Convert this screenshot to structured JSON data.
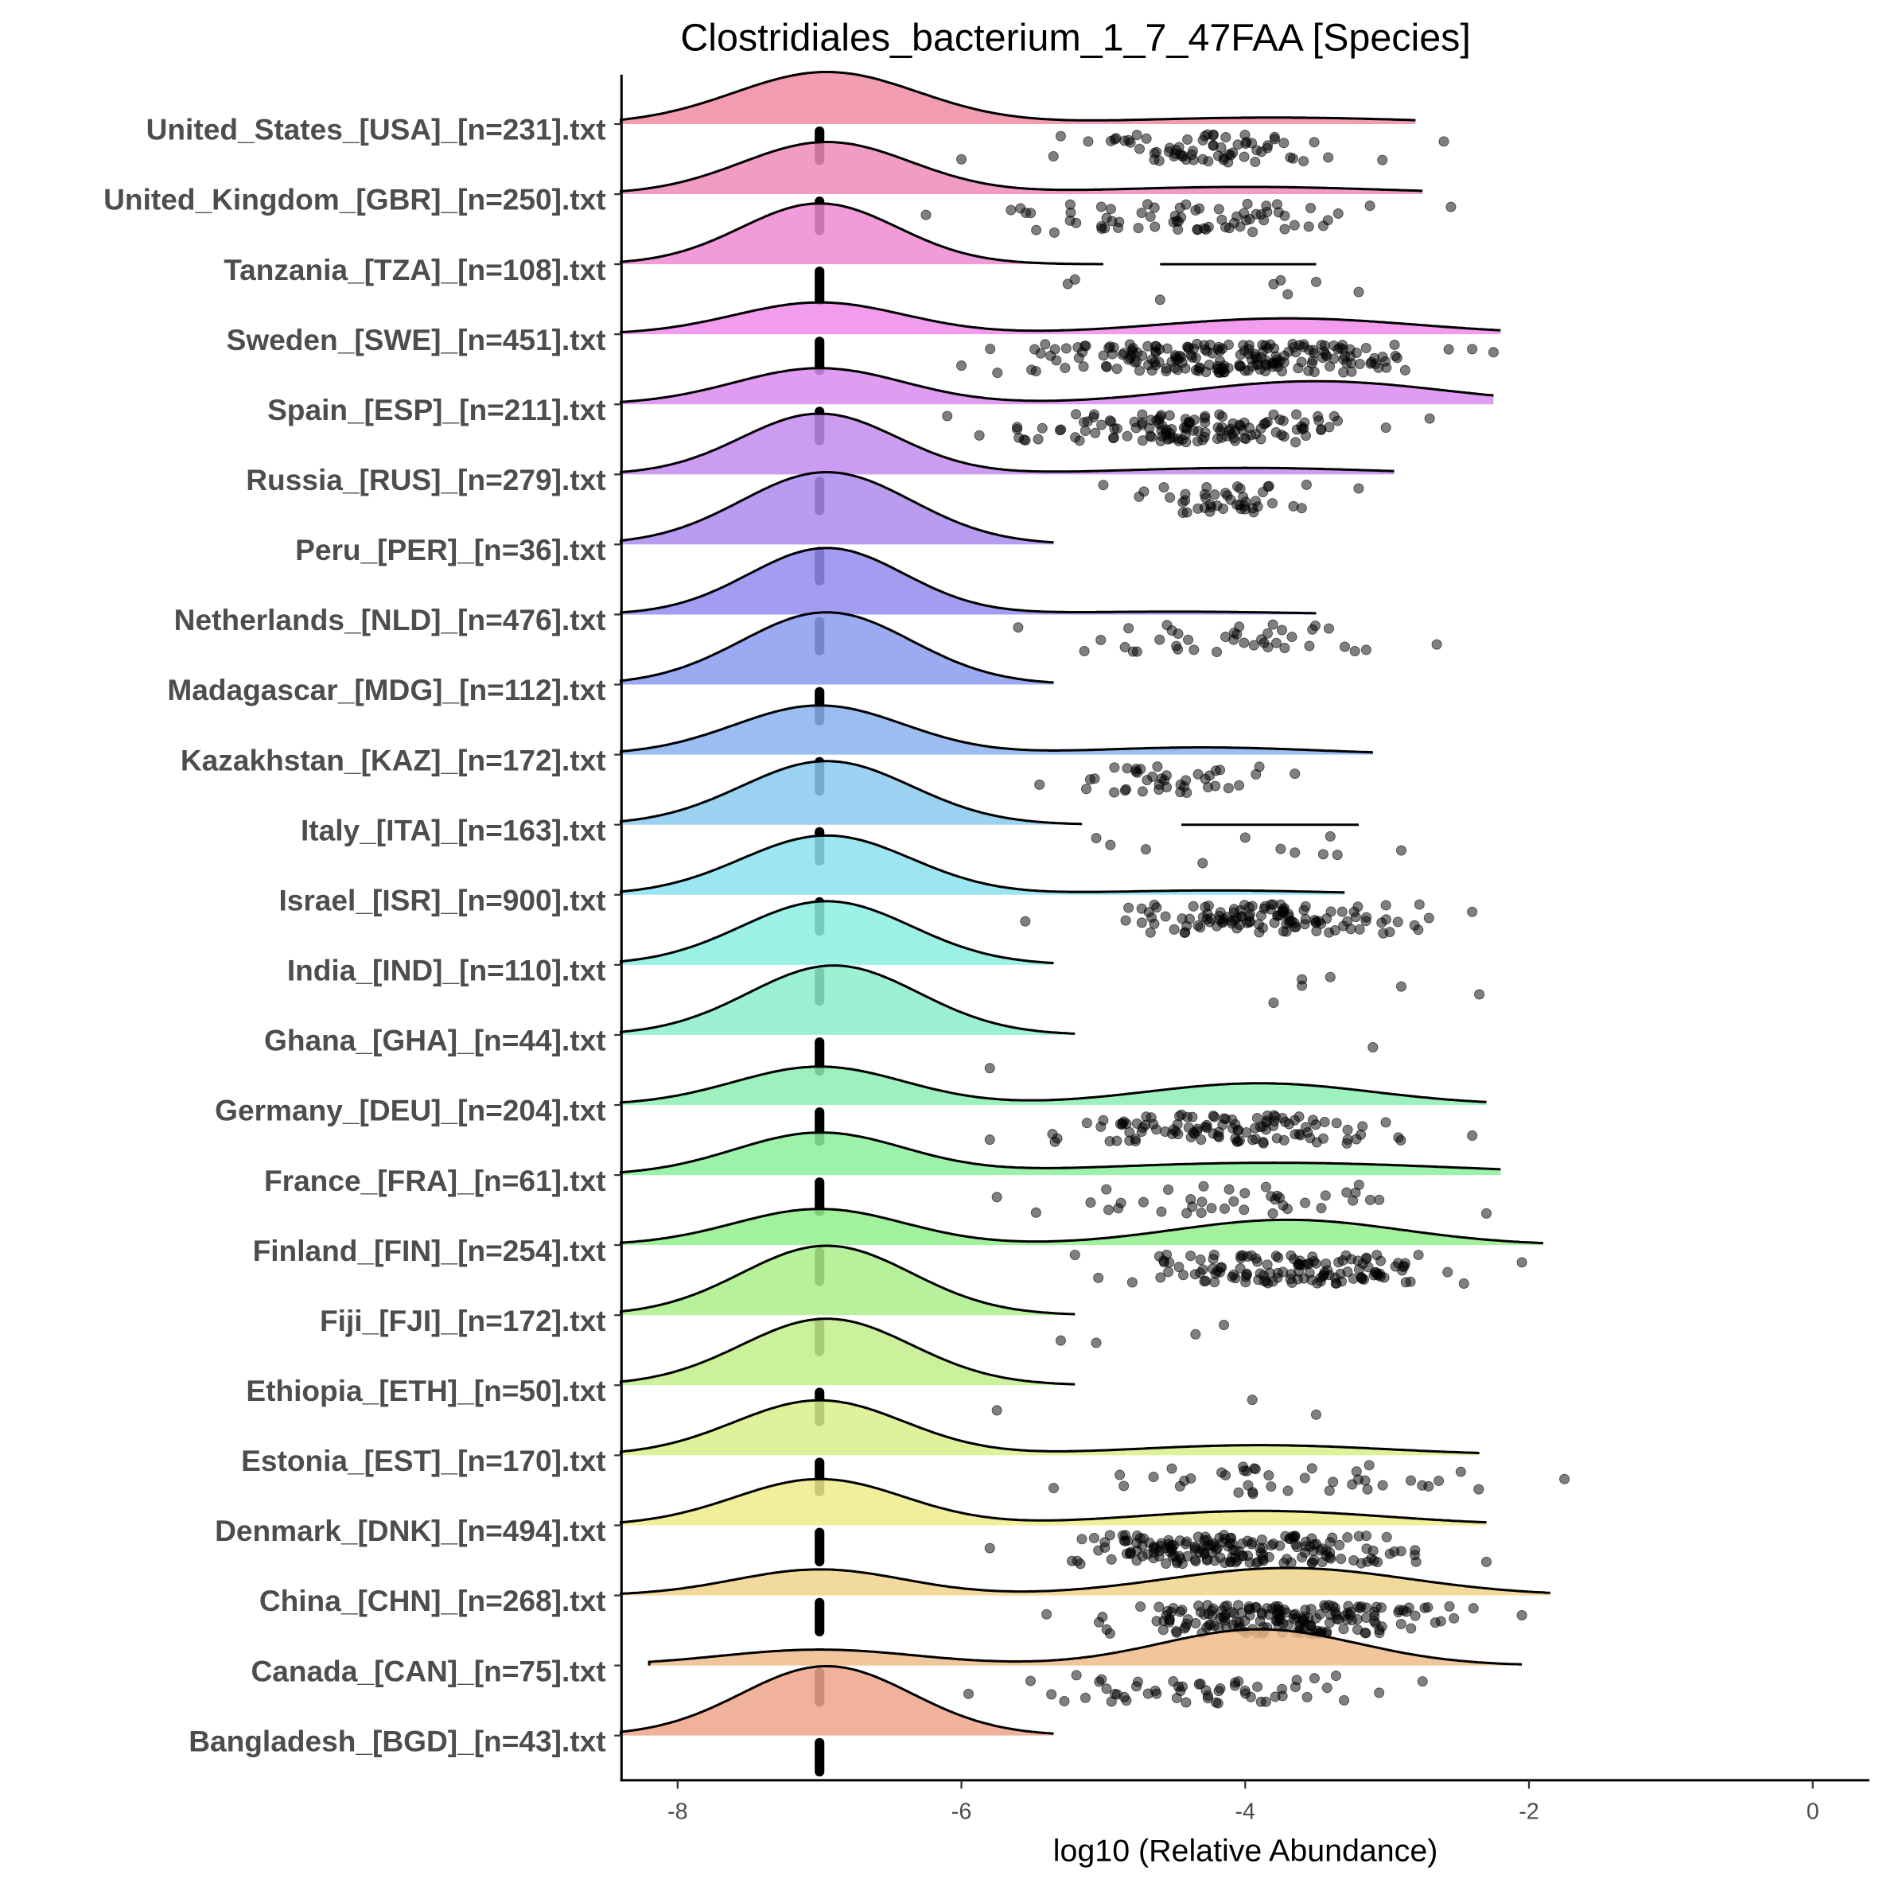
{
  "chart_data": {
    "type": "ridgeline",
    "title": "Clostridiales_bacterium_1_7_47FAA [Species]",
    "xlabel": "log10 (Relative Abundance)",
    "ylabel": "",
    "xlim": [
      -8.4,
      0.8
    ],
    "xticks": [
      -8,
      -6,
      -4,
      -2,
      0
    ],
    "xtick_labels": [
      "-8",
      "-6",
      "-4",
      "-2",
      "0"
    ],
    "median_marker": -7.0,
    "rows": [
      {
        "label": "United_States_[USA]_[n=231].txt",
        "range": [
          -8.4,
          -2.8
        ],
        "modes": [
          [
            -6.95,
            0.65,
            0.72
          ],
          [
            -3.8,
            1.0,
            0.09
          ]
        ],
        "points": {
          "range": [
            -6.0,
            -2.6
          ],
          "count": 70
        }
      },
      {
        "label": "United_Kingdom_[GBR]_[n=250].txt",
        "range": [
          -8.4,
          -2.75
        ],
        "modes": [
          [
            -6.95,
            0.6,
            0.72
          ],
          [
            -4.0,
            1.0,
            0.1
          ]
        ],
        "points": {
          "range": [
            -6.25,
            -2.55
          ],
          "count": 70
        }
      },
      {
        "label": "Tanzania_[TZA]_[n=108].txt",
        "range": [
          -8.4,
          -5.0
        ],
        "modes": [
          [
            -7.0,
            0.55,
            0.84
          ]
        ],
        "segment": [
          -4.6,
          -3.5
        ],
        "points": {
          "values": [
            -5.2,
            -5.25,
            -4.6,
            -3.8,
            -3.7,
            -3.75,
            -3.5,
            -3.2
          ]
        }
      },
      {
        "label": "Sweden_[SWE]_[n=451].txt",
        "range": [
          -8.4,
          -2.2
        ],
        "modes": [
          [
            -7.0,
            0.6,
            0.44
          ],
          [
            -3.7,
            0.9,
            0.22
          ]
        ],
        "points": {
          "range": [
            -6.0,
            -2.25
          ],
          "count": 200
        }
      },
      {
        "label": "Spain_[ESP]_[n=211].txt",
        "range": [
          -8.4,
          -2.25
        ],
        "modes": [
          [
            -7.0,
            0.6,
            0.5
          ],
          [
            -3.5,
            0.9,
            0.32
          ]
        ],
        "points": {
          "range": [
            -6.1,
            -2.7
          ],
          "count": 130
        }
      },
      {
        "label": "Russia_[RUS]_[n=279].txt",
        "range": [
          -8.4,
          -2.95
        ],
        "modes": [
          [
            -7.0,
            0.55,
            0.84
          ],
          [
            -4.0,
            0.9,
            0.09
          ]
        ],
        "points": {
          "range": [
            -5.0,
            -3.2
          ],
          "count": 45
        }
      },
      {
        "label": "Peru_[PER]_[n=36].txt",
        "range": [
          -8.4,
          -5.35
        ],
        "modes": [
          [
            -6.95,
            0.6,
            1.0
          ]
        ],
        "points": {
          "values": []
        }
      },
      {
        "label": "Netherlands_[NLD]_[n=476].txt",
        "range": [
          -8.4,
          -3.5
        ],
        "modes": [
          [
            -6.95,
            0.55,
            0.92
          ],
          [
            -4.5,
            0.8,
            0.04
          ]
        ],
        "points": {
          "range": [
            -5.6,
            -2.65
          ],
          "count": 40
        }
      },
      {
        "label": "Madagascar_[MDG]_[n=112].txt",
        "range": [
          -8.4,
          -5.35
        ],
        "modes": [
          [
            -6.95,
            0.6,
            1.0
          ]
        ],
        "points": {
          "values": []
        }
      },
      {
        "label": "Kazakhstan_[KAZ]_[n=172].txt",
        "range": [
          -8.4,
          -3.1
        ],
        "modes": [
          [
            -7.0,
            0.6,
            0.68
          ],
          [
            -4.3,
            0.8,
            0.1
          ]
        ],
        "points": {
          "range": [
            -5.45,
            -3.65
          ],
          "count": 40
        }
      },
      {
        "label": "Italy_[ITA]_[n=163].txt",
        "range": [
          -8.4,
          -5.15
        ],
        "modes": [
          [
            -6.95,
            0.6,
            0.88
          ]
        ],
        "segment": [
          -4.45,
          -3.2
        ],
        "points": {
          "values": [
            -5.05,
            -4.95,
            -4.7,
            -4.3,
            -4.0,
            -3.75,
            -3.65,
            -3.45,
            -3.4,
            -3.35,
            -2.9
          ]
        }
      },
      {
        "label": "Israel_[ISR]_[n=900].txt",
        "range": [
          -8.4,
          -3.3
        ],
        "modes": [
          [
            -6.95,
            0.6,
            0.82
          ],
          [
            -4.2,
            0.8,
            0.06
          ]
        ],
        "points": {
          "range": [
            -5.55,
            -2.4
          ],
          "count": 120
        }
      },
      {
        "label": "India_[IND]_[n=110].txt",
        "range": [
          -8.4,
          -5.35
        ],
        "modes": [
          [
            -6.95,
            0.6,
            0.88
          ]
        ],
        "points": {
          "values": [
            -3.8,
            -3.6,
            -3.6,
            -3.4,
            -2.9,
            -2.35
          ]
        }
      },
      {
        "label": "Ghana_[GHA]_[n=44].txt",
        "range": [
          -8.4,
          -5.2
        ],
        "modes": [
          [
            -6.9,
            0.6,
            0.96
          ]
        ],
        "points": {
          "values": [
            -5.8,
            -3.1
          ]
        }
      },
      {
        "label": "Germany_[DEU]_[n=204].txt",
        "range": [
          -8.4,
          -2.3
        ],
        "modes": [
          [
            -7.0,
            0.6,
            0.53
          ],
          [
            -3.9,
            0.8,
            0.3
          ]
        ],
        "points": {
          "range": [
            -5.8,
            -2.4
          ],
          "count": 110
        }
      },
      {
        "label": "France_[FRA]_[n=61].txt",
        "range": [
          -8.4,
          -2.2
        ],
        "modes": [
          [
            -7.0,
            0.6,
            0.58
          ],
          [
            -3.8,
            1.3,
            0.17
          ]
        ],
        "points": {
          "range": [
            -5.75,
            -2.3
          ],
          "count": 40
        }
      },
      {
        "label": "Finland_[FIN]_[n=254].txt",
        "range": [
          -8.4,
          -1.9
        ],
        "modes": [
          [
            -7.0,
            0.6,
            0.5
          ],
          [
            -3.7,
            0.8,
            0.35
          ]
        ],
        "points": {
          "range": [
            -5.2,
            -2.05
          ],
          "count": 130
        }
      },
      {
        "label": "Fiji_[FJI]_[n=172].txt",
        "range": [
          -8.4,
          -5.2
        ],
        "modes": [
          [
            -6.95,
            0.6,
            0.96
          ]
        ],
        "points": {
          "values": [
            -5.3,
            -5.05,
            -4.35,
            -4.15
          ]
        }
      },
      {
        "label": "Ethiopia_[ETH]_[n=50].txt",
        "range": [
          -8.4,
          -5.2
        ],
        "modes": [
          [
            -6.95,
            0.6,
            0.92
          ]
        ],
        "points": {
          "values": [
            -5.75,
            -3.95,
            -3.5
          ]
        }
      },
      {
        "label": "Estonia_[EST]_[n=170].txt",
        "range": [
          -8.4,
          -2.35
        ],
        "modes": [
          [
            -7.0,
            0.6,
            0.76
          ],
          [
            -3.9,
            0.9,
            0.14
          ]
        ],
        "points": {
          "range": [
            -5.35,
            -1.75
          ],
          "count": 40
        }
      },
      {
        "label": "Denmark_[DNK]_[n=494].txt",
        "range": [
          -8.4,
          -2.3
        ],
        "modes": [
          [
            -7.0,
            0.6,
            0.64
          ],
          [
            -3.9,
            0.9,
            0.2
          ]
        ],
        "points": {
          "range": [
            -5.8,
            -2.3
          ],
          "count": 180
        }
      },
      {
        "label": "China_[CHN]_[n=268].txt",
        "range": [
          -8.4,
          -1.85
        ],
        "modes": [
          [
            -7.0,
            0.6,
            0.36
          ],
          [
            -3.7,
            0.85,
            0.38
          ]
        ],
        "points": {
          "range": [
            -5.4,
            -2.05
          ],
          "count": 180
        }
      },
      {
        "label": "Canada_[CAN]_[n=75].txt",
        "range": [
          -8.2,
          -2.05
        ],
        "modes": [
          [
            -7.0,
            0.7,
            0.22
          ],
          [
            -3.9,
            0.7,
            0.5
          ]
        ],
        "points": {
          "range": [
            -5.95,
            -2.75
          ],
          "count": 55
        }
      },
      {
        "label": "Bangladesh_[BGD]_[n=43].txt",
        "range": [
          -8.4,
          -5.35
        ],
        "modes": [
          [
            -6.95,
            0.6,
            0.96
          ]
        ],
        "points": {
          "values": []
        }
      }
    ]
  }
}
